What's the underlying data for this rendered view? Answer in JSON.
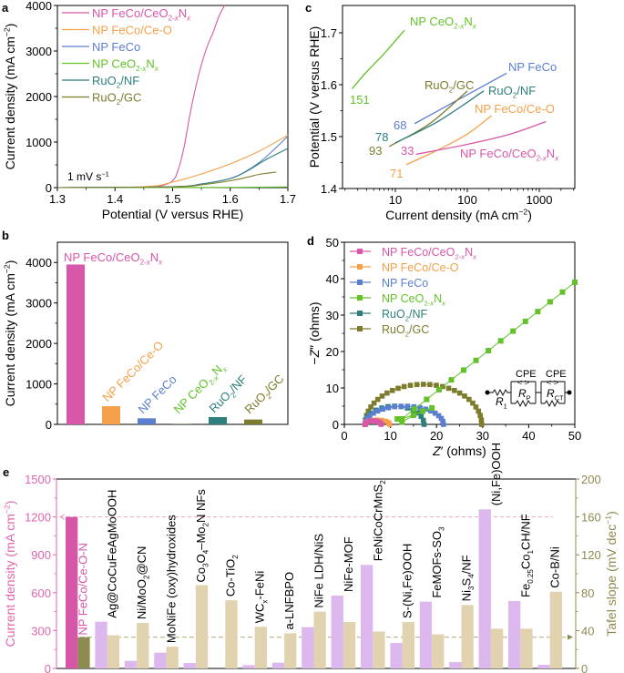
{
  "figure": {
    "panel_letters": [
      "a",
      "b",
      "c",
      "d",
      "e"
    ]
  },
  "colors": {
    "feco_ceo2xnx": "#d957a8",
    "feco_ceo": "#f5a04a",
    "feco": "#5b7fd0",
    "ceo2xnx": "#63c22a",
    "ruo2_nf": "#2e7f7c",
    "ruo2_gc": "#7d7b2c",
    "e_current": "#dcb8ee",
    "e_tafel": "#e2d3b0",
    "e_ours_current": "#d656a8",
    "e_ours_tafel": "#8e8b52",
    "e_left_axis": "#e066ae",
    "e_right_axis": "#8f8a4f"
  },
  "chart_data": [
    {
      "panel": "a",
      "type": "line",
      "title": "",
      "xlabel": "Potential (V versus RHE)",
      "ylabel": "Current density (mA cm−2)",
      "xlim": [
        1.3,
        1.7
      ],
      "ylim": [
        0,
        4000
      ],
      "xticks": [
        1.3,
        1.4,
        1.5,
        1.6,
        1.7
      ],
      "yticks": [
        0,
        1000,
        2000,
        3000,
        4000
      ],
      "annotation": "1 mV s−1",
      "legend_position": "top-left",
      "series": [
        {
          "name": "NP FeCo/CeO2-xNx",
          "color_key": "feco_ceo2xnx",
          "x": [
            1.3,
            1.45,
            1.48,
            1.5,
            1.51,
            1.52,
            1.53,
            1.54,
            1.55,
            1.56,
            1.57,
            1.58,
            1.59
          ],
          "y": [
            0,
            10,
            40,
            150,
            400,
            900,
            1600,
            2200,
            2700,
            3100,
            3400,
            3750,
            4000
          ]
        },
        {
          "name": "NP FeCo/Ce-O",
          "color_key": "feco_ceo",
          "x": [
            1.3,
            1.45,
            1.5,
            1.55,
            1.6,
            1.65,
            1.7
          ],
          "y": [
            0,
            20,
            120,
            300,
            520,
            800,
            1150
          ]
        },
        {
          "name": "NP FeCo",
          "color_key": "feco",
          "x": [
            1.3,
            1.5,
            1.55,
            1.6,
            1.63,
            1.66,
            1.7
          ],
          "y": [
            0,
            20,
            80,
            200,
            380,
            650,
            1130
          ]
        },
        {
          "name": "NP CeO2-xNx",
          "color_key": "ceo2xnx",
          "x": [
            1.3,
            1.5,
            1.6,
            1.7
          ],
          "y": [
            0,
            2,
            5,
            15
          ]
        },
        {
          "name": "RuO2/NF",
          "color_key": "ruo2_nf",
          "x": [
            1.3,
            1.5,
            1.55,
            1.6,
            1.63,
            1.66,
            1.7
          ],
          "y": [
            0,
            20,
            80,
            200,
            370,
            600,
            860
          ]
        },
        {
          "name": "RuO2/GC",
          "color_key": "ruo2_gc",
          "x": [
            1.3,
            1.5,
            1.55,
            1.6,
            1.63,
            1.65,
            1.68
          ],
          "y": [
            0,
            15,
            60,
            150,
            230,
            290,
            340
          ]
        }
      ]
    },
    {
      "panel": "b",
      "type": "bar",
      "title": "",
      "xlabel": "",
      "ylabel": "Current density (mA cm−2)",
      "ylim": [
        0,
        4500
      ],
      "yticks": [
        0,
        1000,
        2000,
        3000,
        4000
      ],
      "categories": [
        "NP FeCo/CeO2-xNx",
        "NP FeCo/Ce-O",
        "NP FeCo",
        "NP CeO2-xNx",
        "RuO2/NF",
        "RuO2/GC"
      ],
      "color_keys": [
        "feco_ceo2xnx",
        "feco_ceo",
        "feco",
        "ceo2xnx",
        "ruo2_nf",
        "ruo2_gc"
      ],
      "values": [
        3950,
        450,
        150,
        5,
        180,
        120
      ]
    },
    {
      "panel": "c",
      "type": "line",
      "title": "",
      "xlabel": "Current density (mA cm−2)",
      "ylabel": "Potential (V versus RHE)",
      "xscale": "log",
      "xlim": [
        1.85,
        3100
      ],
      "ylim": [
        1.4,
        1.75
      ],
      "xticks": [
        10,
        100,
        1000
      ],
      "yticks": [
        1.4,
        1.5,
        1.6,
        1.7
      ],
      "series": [
        {
          "name": "NP CeO2-xNx",
          "color_key": "ceo2xnx",
          "tafel_slope": "151",
          "x": [
            2.5,
            4,
            7,
            13.4
          ],
          "y": [
            1.592,
            1.625,
            1.66,
            1.705
          ]
        },
        {
          "name": "NP FeCo",
          "color_key": "feco",
          "tafel_slope": "68",
          "x": [
            18.5,
            350
          ],
          "y": [
            1.525,
            1.622
          ]
        },
        {
          "name": "RuO2/GC",
          "color_key": "ruo2_gc",
          "tafel_slope": "93",
          "x": [
            8.2,
            30,
            100
          ],
          "y": [
            1.481,
            1.525,
            1.588
          ]
        },
        {
          "name": "RuO2/NF",
          "color_key": "ruo2_nf",
          "tafel_slope": "78",
          "x": [
            10,
            40,
            169
          ],
          "y": [
            1.488,
            1.53,
            1.588
          ]
        },
        {
          "name": "NP FeCo/Ce-O",
          "color_key": "feco_ceo",
          "tafel_slope": "71",
          "x": [
            14.2,
            40,
            100,
            215
          ],
          "y": [
            1.446,
            1.475,
            1.505,
            1.54
          ]
        },
        {
          "name": "NP FeCo/CeO2-xNx",
          "color_key": "feco_ceo2xnx",
          "tafel_slope": "33",
          "x": [
            19.4,
            100,
            400,
            1240
          ],
          "y": [
            1.466,
            1.485,
            1.505,
            1.529
          ]
        }
      ]
    },
    {
      "panel": "d",
      "type": "scatter",
      "title": "",
      "xlabel": "Z′ (ohms)",
      "ylabel": "−Z″ (ohms)",
      "xlim": [
        0,
        50
      ],
      "ylim": [
        0,
        50
      ],
      "xticks": [
        0,
        10,
        20,
        30,
        40,
        50
      ],
      "yticks": [
        0,
        10,
        20,
        30,
        40,
        50
      ],
      "legend_position": "top-left",
      "inset": {
        "labels": [
          "CPE",
          "CPE",
          "R1",
          "RP",
          "RCT"
        ]
      },
      "series": [
        {
          "name": "NP FeCo/CeO2-xNx",
          "color_key": "feco_ceo2xnx",
          "arc": {
            "r0": 4.5,
            "r1": 8.0,
            "height": 1.0
          }
        },
        {
          "name": "NP FeCo/Ce-O",
          "color_key": "feco_ceo",
          "arc": {
            "r0": 4.5,
            "r1": 9.8,
            "height": 1.2
          }
        },
        {
          "name": "NP FeCo",
          "color_key": "feco",
          "arc": {
            "r0": 4.5,
            "r1": 21.5,
            "height": 5.0
          }
        },
        {
          "name": "NP CeO2-xNx",
          "color_key": "ceo2xnx",
          "arc": {
            "r0": 11.0,
            "r1": 14.0,
            "height": 2.0
          },
          "tail": {
            "x0": 12.5,
            "y0": 1.5,
            "x1": 50,
            "y1": 39
          }
        },
        {
          "name": "RuO2/NF",
          "color_key": "ruo2_nf",
          "arc": {
            "r0": 4.5,
            "r1": 17.3,
            "height": 5.0
          }
        },
        {
          "name": "RuO2/GC",
          "color_key": "ruo2_gc",
          "arc": {
            "r0": 4.5,
            "r1": 29.8,
            "height": 11.0
          }
        }
      ]
    },
    {
      "panel": "e",
      "type": "bar",
      "title": "",
      "ylabel": "Current density (mA cm−2)",
      "y2label": "Tafel slope (mV dec−1)",
      "ylim": [
        0,
        1500
      ],
      "y2lim": [
        0,
        200
      ],
      "yticks": [
        0,
        300,
        600,
        900,
        1200,
        1500
      ],
      "y2ticks": [
        0,
        40,
        80,
        120,
        160,
        200
      ],
      "reference_lines": {
        "current": 1200,
        "tafel": 33
      },
      "categories": [
        "NP FeCo/Ce-O-N",
        "Ag@CoCuFeAgMoOOH",
        "Ni/MoO2@CN",
        "MoNiFe (oxy)hydroxides",
        "Co3O4–Mo2N NFs",
        "Co-TiO2",
        "WCx-FeNi",
        "a-LNFBPO",
        "NiFe LDH/NiS",
        "NiFe-MOF",
        "FeNiCoCrMnS2",
        "S-(Ni,Fe)OOH",
        "FeMOFs-SO3",
        "Ni3S4/NF",
        "(Ni,Fe)OOH",
        "Fe0.25Co1CH/NF",
        "Co-B/Ni"
      ],
      "series": [
        {
          "name": "Current density",
          "axis": "left",
          "values": [
            1200,
            370,
            60,
            125,
            43,
            0,
            26,
            46,
            327,
            577,
            820,
            202,
            529,
            50,
            1260,
            534,
            29
          ]
        },
        {
          "name": "Tafel slope",
          "axis": "right",
          "values": [
            33,
            35,
            48,
            23,
            88,
            72,
            44,
            37,
            60,
            49,
            39,
            49,
            36,
            67,
            42,
            42,
            81
          ]
        }
      ]
    }
  ],
  "labels": {
    "a_legend": [
      "NP FeCo/CeO",
      "NP FeCo/Ce-O",
      "NP FeCo",
      "NP CeO",
      "RuO",
      "RuO"
    ],
    "sub_2x": "2-x",
    "sub_x": "x",
    "sub_2": "2"
  }
}
